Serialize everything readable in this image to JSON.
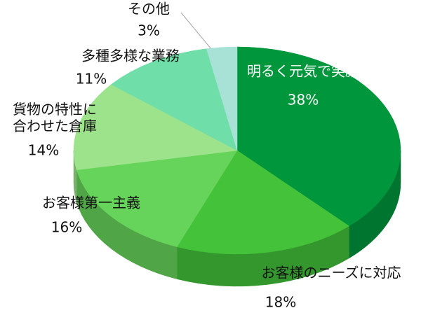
{
  "chart_data": {
    "type": "pie3d",
    "categories": [
      "明るく元気で笑顔",
      "お客様のニーズに対応",
      "お客様第一主義",
      "貨物の特性に\n合わせた倉庫",
      "多種多様な業務",
      "その他"
    ],
    "values": [
      38,
      18,
      16,
      14,
      11,
      3
    ],
    "value_labels": [
      "38%",
      "18%",
      "16%",
      "14%",
      "11%",
      "3%"
    ],
    "colors": [
      "#00963c",
      "#43c23a",
      "#66d45a",
      "#9de38c",
      "#6fdea8",
      "#a8e2d6"
    ]
  }
}
